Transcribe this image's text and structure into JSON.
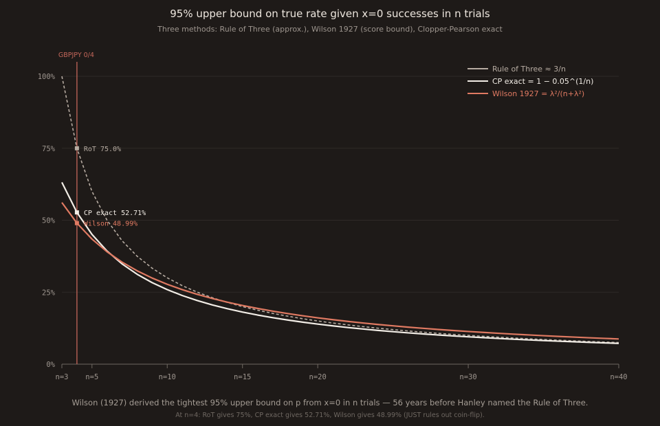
{
  "chart_data": {
    "type": "line",
    "title": "95% upper bound on true rate given x=0 successes in n trials",
    "subtitle": "Three methods: Rule of Three (approx.), Wilson 1927 (score bound), Clopper-Pearson exact",
    "xlabel": "",
    "ylabel": "",
    "xlim": [
      3,
      40
    ],
    "ylim": [
      0,
      1
    ],
    "x_ticks": [
      3,
      5,
      10,
      15,
      20,
      30,
      40
    ],
    "x_tick_labels": [
      "n=3",
      "n=5",
      "n=10",
      "n=15",
      "n=20",
      "n=30",
      "n=40"
    ],
    "y_ticks": [
      0,
      0.25,
      0.5,
      0.75,
      1.0
    ],
    "y_tick_labels": [
      "0%",
      "25%",
      "50%",
      "75%",
      "100%"
    ],
    "grid": true,
    "legend_position": "top-right",
    "x": [
      3,
      4,
      5,
      6,
      7,
      8,
      9,
      10,
      11,
      12,
      13,
      14,
      15,
      16,
      17,
      18,
      19,
      20,
      21,
      22,
      23,
      24,
      25,
      26,
      27,
      28,
      29,
      30,
      31,
      32,
      33,
      34,
      35,
      36,
      37,
      38,
      39,
      40
    ],
    "series": [
      {
        "name": "Rule of Three ≈ 3/n",
        "color": "#b7aca2",
        "style": "dashed",
        "values": [
          1.0,
          0.75,
          0.6,
          0.5,
          0.4286,
          0.375,
          0.3333,
          0.3,
          0.2727,
          0.25,
          0.2308,
          0.2143,
          0.2,
          0.1875,
          0.1765,
          0.1667,
          0.1579,
          0.15,
          0.1429,
          0.1364,
          0.1304,
          0.125,
          0.12,
          0.1154,
          0.1111,
          0.1071,
          0.1034,
          0.1,
          0.0968,
          0.0938,
          0.0909,
          0.0882,
          0.0857,
          0.0833,
          0.0811,
          0.0789,
          0.0769,
          0.075
        ]
      },
      {
        "name": "CP exact = 1 − 0.05^(1/n)",
        "color": "#f2ede6",
        "style": "solid",
        "values": [
          0.6316,
          0.5271,
          0.4507,
          0.393,
          0.3482,
          0.3123,
          0.2831,
          0.2589,
          0.2384,
          0.221,
          0.2058,
          0.1926,
          0.181,
          0.1707,
          0.1616,
          0.1533,
          0.1459,
          0.1391,
          0.133,
          0.1273,
          0.1221,
          0.1173,
          0.1129,
          0.1088,
          0.105,
          0.1014,
          0.0981,
          0.095,
          0.0921,
          0.0893,
          0.0867,
          0.0843,
          0.082,
          0.0798,
          0.0778,
          0.0758,
          0.074,
          0.0722
        ]
      },
      {
        "name": "Wilson 1927 = λ²/(n+λ²)",
        "color": "#e07a62",
        "style": "solid",
        "values": [
          0.5615,
          0.4899,
          0.4345,
          0.3903,
          0.3543,
          0.3244,
          0.2991,
          0.2775,
          0.2588,
          0.2425,
          0.2281,
          0.2153,
          0.2039,
          0.1936,
          0.1843,
          0.1758,
          0.1681,
          0.161,
          0.1545,
          0.1485,
          0.143,
          0.1378,
          0.1332,
          0.1286,
          0.1245,
          0.1206,
          0.117,
          0.1135,
          0.1103,
          0.1072,
          0.1043,
          0.1016,
          0.0989,
          0.0964,
          0.0941,
          0.0918,
          0.0897,
          0.0876
        ]
      }
    ],
    "marker_line": {
      "x": 4,
      "label": "GBPJPY 0/4",
      "color": "#c4675a"
    },
    "point_annotations": [
      {
        "x": 4,
        "y": 0.75,
        "label": "RoT 75.0%",
        "color": "#b7aca2"
      },
      {
        "x": 4,
        "y": 0.5271,
        "label": "CP exact 52.71%",
        "color": "#f2ede6"
      },
      {
        "x": 4,
        "y": 0.4899,
        "label": "Wilson 48.99%",
        "color": "#e07a62"
      }
    ]
  },
  "footer": {
    "line1": "Wilson (1927) derived the tightest 95% upper bound on p from x=0 in n trials — 56 years before Hanley named the Rule of Three.",
    "line2": "At n=4: RoT gives 75%, CP exact gives 52.71%, Wilson gives 48.99% (JUST rules out coin-flip)."
  },
  "colors": {
    "background": "#1e1a18",
    "grid": "#2f2a27",
    "axis": "#6f6862",
    "tick_text": "#9d958e"
  }
}
